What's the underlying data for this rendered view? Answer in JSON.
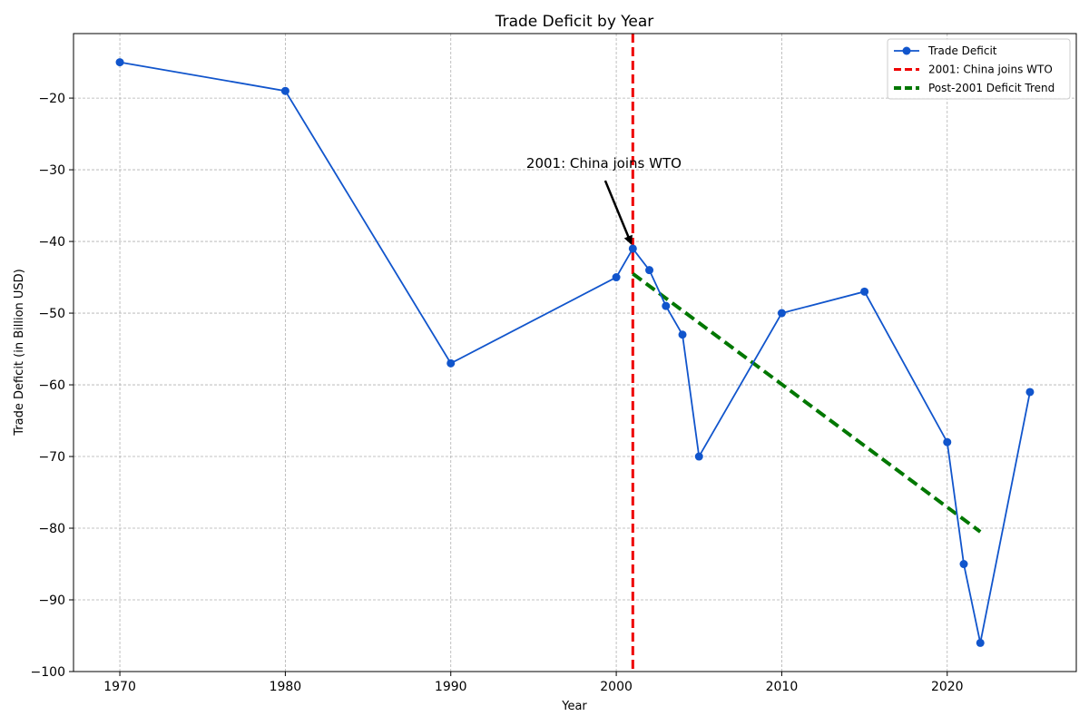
{
  "chart_data": {
    "type": "line",
    "title": "Trade Deficit by Year",
    "xlabel": "Year",
    "ylabel": "Trade Deficit (in Billion USD)",
    "xlim": [
      1967.2,
      2027.8
    ],
    "ylim": [
      -100,
      -11
    ],
    "xticks": [
      1970,
      1980,
      1990,
      2000,
      2010,
      2020
    ],
    "yticks": [
      -100,
      -90,
      -80,
      -70,
      -60,
      -50,
      -40,
      -30,
      -20
    ],
    "ytick_labels": [
      "−100",
      "−90",
      "−80",
      "−70",
      "−60",
      "−50",
      "−40",
      "−30",
      "−20"
    ],
    "grid": true,
    "legend_position": "top-right",
    "series": [
      {
        "name": "Trade Deficit",
        "color": "#1155cc",
        "marker": "circle",
        "x": [
          1970,
          1980,
          1990,
          2000,
          2001,
          2002,
          2003,
          2004,
          2005,
          2010,
          2015,
          2020,
          2021,
          2022,
          2025
        ],
        "y": [
          -15,
          -19,
          -57,
          -45,
          -41,
          -44,
          -49,
          -53,
          -70,
          -50,
          -47,
          -68,
          -85,
          -96,
          -61
        ]
      }
    ],
    "reference_lines": [
      {
        "name": "2001: China joins WTO",
        "orientation": "vertical",
        "x": 2001,
        "color": "#ee0000",
        "style": "dashed"
      }
    ],
    "trend_lines": [
      {
        "name": "Post-2001 Deficit Trend",
        "color": "#007700",
        "style": "dashed",
        "x": [
          2001,
          2022
        ],
        "y": [
          -44.5,
          -80.5
        ]
      }
    ],
    "annotations": [
      {
        "text": "2001: China joins WTO",
        "arrow_to": {
          "x": 2001,
          "y": -41
        },
        "text_at": {
          "x": 1995,
          "y": -30
        }
      }
    ]
  }
}
